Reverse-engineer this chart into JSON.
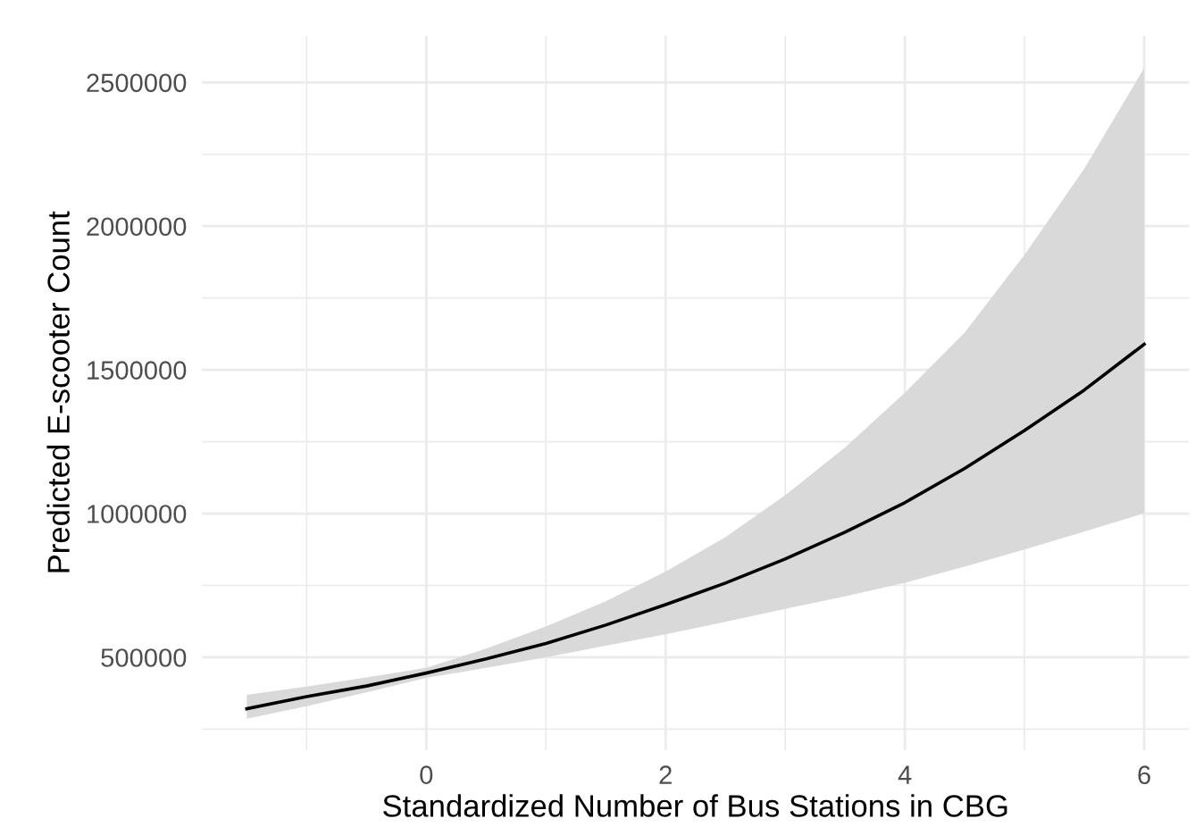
{
  "chart_data": {
    "type": "line",
    "xlabel": "Standardized Number of Bus Stations in CBG",
    "ylabel": "Predicted E-scooter Count",
    "series": [
      {
        "color": "#000000",
        "x": [
          -1.5,
          -1,
          -0.5,
          0,
          0.5,
          1,
          1.5,
          2,
          2.5,
          3,
          3.5,
          4,
          4.5,
          5,
          5.5,
          6
        ],
        "values": [
          321000,
          363000,
          400000,
          445000,
          494000,
          548000,
          612000,
          683000,
          758000,
          842000,
          935000,
          1038000,
          1157000,
          1289000,
          1430000,
          1589000
        ],
        "lower": [
          286000,
          330000,
          378000,
          428000,
          463000,
          500000,
          540000,
          580000,
          623000,
          668000,
          712000,
          759000,
          815000,
          875000,
          937000,
          1001000
        ],
        "upper": [
          369000,
          398000,
          430000,
          463000,
          530000,
          607000,
          695000,
          798000,
          918000,
          1064000,
          1230000,
          1420000,
          1630000,
          1900000,
          2200000,
          2550000
        ]
      }
    ],
    "xlim": [
      -1.875,
      6.375
    ],
    "xticks": [
      0,
      2,
      4,
      6
    ],
    "ylim": [
      177000,
      2663000
    ],
    "yticks": [
      500000,
      1000000,
      1500000,
      2000000,
      2500000
    ],
    "grid": true,
    "marker": "none",
    "line_style": "solid"
  }
}
